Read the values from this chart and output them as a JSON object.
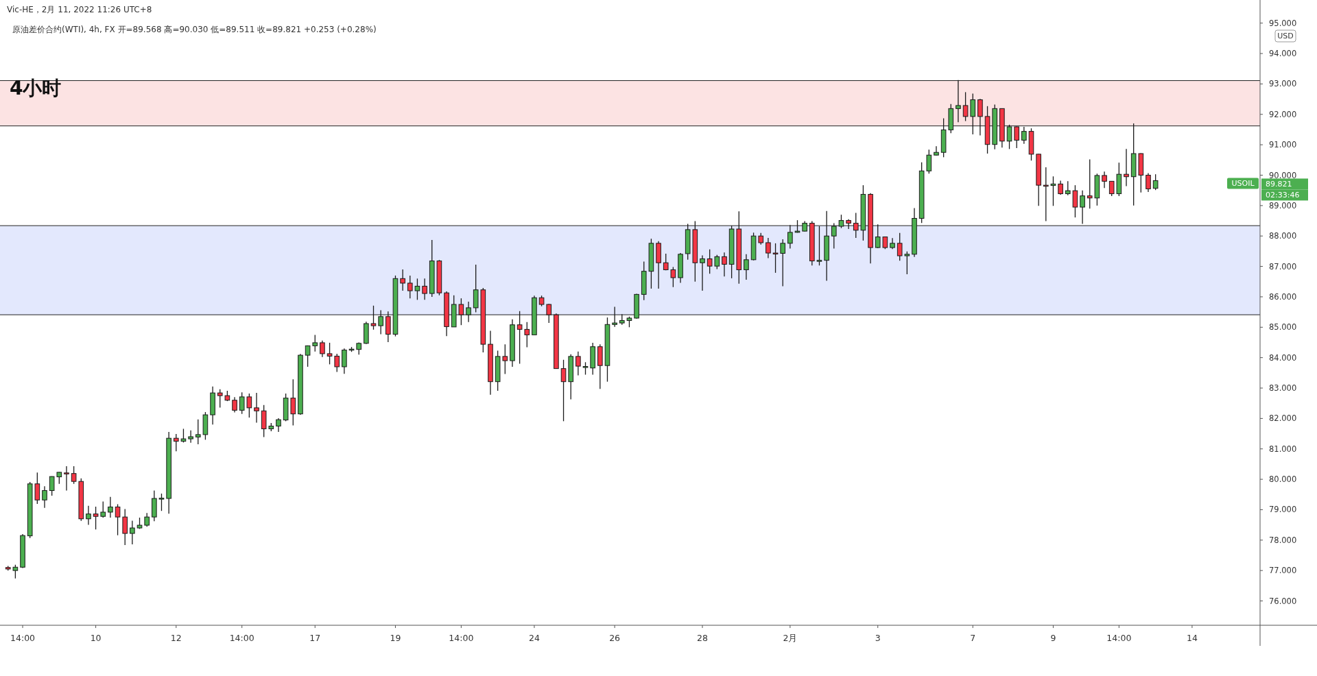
{
  "chart_data": {
    "type": "candlestick",
    "title": "4小时",
    "subtitle": "原油差价合约(WTI), 4h, FX  开=89.568  高=90.030  低=89.511  收=89.821  +0.253 (+0.28%)",
    "annotations": [
      "Vic-HE，2月 11, 2022 11:26 UTC+8",
      "USD",
      "USOIL",
      "89.821",
      "02:33:46"
    ],
    "categories": [
      null,
      null,
      "14:00",
      null,
      null,
      null,
      null,
      null,
      null,
      null,
      null,
      null,
      "10",
      null,
      null,
      null,
      null,
      null,
      null,
      null,
      null,
      null,
      null,
      "12",
      null,
      null,
      null,
      null,
      null,
      null,
      null,
      null,
      "14:00",
      null,
      null,
      null,
      null,
      null,
      null,
      null,
      null,
      null,
      "17",
      null,
      null,
      null,
      null,
      null,
      null,
      null,
      null,
      null,
      null,
      "19",
      null,
      null,
      null,
      null,
      null,
      null,
      null,
      null,
      "14:00",
      null,
      null,
      null,
      null,
      null,
      null,
      null,
      null,
      null,
      "24",
      null,
      null,
      null,
      null,
      null,
      null,
      null,
      null,
      null,
      null,
      "26",
      null,
      null,
      null,
      null,
      null,
      null,
      null,
      null,
      null,
      null,
      null,
      "28",
      null,
      null,
      null,
      null,
      null,
      null,
      null,
      null,
      null,
      null,
      null,
      "2月",
      null,
      null,
      null,
      null,
      null,
      null,
      null,
      null,
      null,
      null,
      null,
      "3",
      null,
      null,
      null,
      null,
      null,
      null,
      null,
      null,
      null,
      null,
      null,
      null,
      "7",
      null,
      null,
      null,
      null,
      null,
      null,
      null,
      null,
      null,
      null,
      "9",
      null,
      null,
      null,
      null,
      null,
      null,
      null,
      null,
      "14:00",
      null,
      null,
      null,
      null,
      null,
      null,
      null,
      null,
      null,
      "14",
      null,
      null,
      null,
      null,
      null,
      null,
      null,
      null,
      null
    ],
    "ohlc": [
      [
        77.1,
        77.15,
        77.0,
        77.05
      ],
      [
        77.0,
        77.19,
        76.74,
        77.11
      ],
      [
        77.11,
        78.2,
        77.08,
        78.15
      ],
      [
        78.14,
        79.91,
        78.07,
        79.85
      ],
      [
        79.85,
        80.22,
        79.19,
        79.32
      ],
      [
        79.32,
        79.77,
        79.06,
        79.63
      ],
      [
        79.63,
        80.1,
        79.46,
        80.09
      ],
      [
        80.08,
        80.24,
        79.85,
        80.23
      ],
      [
        80.21,
        80.43,
        79.63,
        80.2
      ],
      [
        80.19,
        80.43,
        79.85,
        79.93
      ],
      [
        79.93,
        80.03,
        78.63,
        78.7
      ],
      [
        78.7,
        79.13,
        78.5,
        78.86
      ],
      [
        78.86,
        79.1,
        78.35,
        78.78
      ],
      [
        78.78,
        79.27,
        78.74,
        78.92
      ],
      [
        78.92,
        79.42,
        78.74,
        79.09
      ],
      [
        79.09,
        79.18,
        78.16,
        78.76
      ],
      [
        78.76,
        79.02,
        77.84,
        78.22
      ],
      [
        78.22,
        78.64,
        77.86,
        78.4
      ],
      [
        78.4,
        78.74,
        78.37,
        78.49
      ],
      [
        78.49,
        78.89,
        78.44,
        78.76
      ],
      [
        78.76,
        79.63,
        78.62,
        79.37
      ],
      [
        79.37,
        79.53,
        78.96,
        79.38
      ],
      [
        79.37,
        81.56,
        78.87,
        81.35
      ],
      [
        81.35,
        81.49,
        80.92,
        81.25
      ],
      [
        81.25,
        81.66,
        81.21,
        81.33
      ],
      [
        81.33,
        81.61,
        81.2,
        81.4
      ],
      [
        81.39,
        81.97,
        81.15,
        81.47
      ],
      [
        81.47,
        82.21,
        81.3,
        82.12
      ],
      [
        82.12,
        83.05,
        81.8,
        82.84
      ],
      [
        82.84,
        82.96,
        82.36,
        82.75
      ],
      [
        82.75,
        82.91,
        82.57,
        82.6
      ],
      [
        82.6,
        82.7,
        82.2,
        82.27
      ],
      [
        82.27,
        82.86,
        82.15,
        82.71
      ],
      [
        82.71,
        82.82,
        82.03,
        82.35
      ],
      [
        82.35,
        82.84,
        81.86,
        82.25
      ],
      [
        82.25,
        82.44,
        81.39,
        81.66
      ],
      [
        81.66,
        81.85,
        81.58,
        81.75
      ],
      [
        81.75,
        82.01,
        81.56,
        81.96
      ],
      [
        81.95,
        82.82,
        81.91,
        82.67
      ],
      [
        82.67,
        83.29,
        81.77,
        82.15
      ],
      [
        82.15,
        84.12,
        82.12,
        84.08
      ],
      [
        84.08,
        84.4,
        83.7,
        84.39
      ],
      [
        84.39,
        84.75,
        84.2,
        84.49
      ],
      [
        84.49,
        84.56,
        84.02,
        84.13
      ],
      [
        84.13,
        84.49,
        83.78,
        84.05
      ],
      [
        84.05,
        84.13,
        83.53,
        83.7
      ],
      [
        83.7,
        84.3,
        83.47,
        84.25
      ],
      [
        84.25,
        84.35,
        84.19,
        84.28
      ],
      [
        84.27,
        84.5,
        84.1,
        84.47
      ],
      [
        84.47,
        85.18,
        84.45,
        85.12
      ],
      [
        85.12,
        85.71,
        84.92,
        85.05
      ],
      [
        85.05,
        85.56,
        84.77,
        85.35
      ],
      [
        85.35,
        85.52,
        84.51,
        84.77
      ],
      [
        84.77,
        86.7,
        84.7,
        86.6
      ],
      [
        86.6,
        86.9,
        86.2,
        86.45
      ],
      [
        86.45,
        86.7,
        85.95,
        86.2
      ],
      [
        86.2,
        86.6,
        85.9,
        86.35
      ],
      [
        86.35,
        86.6,
        85.9,
        86.11
      ],
      [
        86.11,
        87.87,
        86.0,
        87.18
      ],
      [
        87.18,
        87.21,
        86.05,
        86.13
      ],
      [
        86.13,
        86.18,
        84.71,
        85.02
      ],
      [
        85.01,
        86.05,
        85.01,
        85.75
      ],
      [
        85.75,
        85.95,
        85.07,
        85.41
      ],
      [
        85.41,
        85.84,
        85.17,
        85.64
      ],
      [
        85.64,
        87.06,
        85.49,
        86.23
      ],
      [
        86.23,
        86.29,
        84.17,
        84.44
      ],
      [
        84.44,
        84.88,
        82.78,
        83.21
      ],
      [
        83.21,
        84.23,
        82.91,
        84.04
      ],
      [
        84.04,
        84.44,
        83.46,
        83.9
      ],
      [
        83.9,
        85.26,
        83.7,
        85.08
      ],
      [
        85.08,
        85.53,
        83.8,
        84.93
      ],
      [
        84.93,
        85.17,
        84.34,
        84.75
      ],
      [
        84.75,
        86.04,
        84.75,
        85.97
      ],
      [
        85.97,
        86.04,
        85.69,
        85.75
      ],
      [
        85.75,
        85.77,
        85.14,
        85.41
      ],
      [
        85.41,
        85.45,
        83.63,
        83.64
      ],
      [
        83.64,
        83.93,
        81.91,
        83.21
      ],
      [
        83.21,
        84.11,
        82.63,
        84.04
      ],
      [
        84.04,
        84.2,
        83.42,
        83.72
      ],
      [
        83.69,
        83.85,
        83.44,
        83.71
      ],
      [
        83.66,
        84.49,
        83.44,
        84.36
      ],
      [
        84.36,
        84.44,
        82.97,
        83.74
      ],
      [
        83.74,
        85.32,
        83.21,
        85.09
      ],
      [
        85.09,
        85.67,
        85.01,
        85.14
      ],
      [
        85.14,
        85.43,
        85.08,
        85.22
      ],
      [
        85.22,
        85.35,
        85.0,
        85.3
      ],
      [
        85.3,
        86.1,
        85.28,
        86.08
      ],
      [
        86.08,
        87.16,
        85.89,
        86.84
      ],
      [
        86.84,
        87.91,
        86.27,
        87.76
      ],
      [
        87.76,
        87.83,
        86.27,
        87.12
      ],
      [
        87.12,
        87.42,
        86.87,
        86.89
      ],
      [
        86.89,
        86.98,
        86.32,
        86.63
      ],
      [
        86.63,
        87.44,
        86.46,
        87.4
      ],
      [
        87.42,
        88.4,
        87.22,
        88.21
      ],
      [
        88.21,
        88.49,
        86.5,
        87.12
      ],
      [
        87.12,
        87.36,
        86.2,
        87.25
      ],
      [
        87.25,
        87.56,
        86.76,
        87.01
      ],
      [
        87.01,
        87.38,
        86.91,
        87.32
      ],
      [
        87.32,
        87.46,
        86.67,
        87.07
      ],
      [
        87.07,
        88.34,
        86.61,
        88.23
      ],
      [
        88.23,
        88.81,
        86.43,
        86.89
      ],
      [
        86.89,
        87.4,
        86.56,
        87.22
      ],
      [
        87.22,
        88.11,
        87.2,
        88.0
      ],
      [
        88.0,
        88.1,
        87.72,
        87.78
      ],
      [
        87.78,
        87.94,
        87.27,
        87.44
      ],
      [
        87.44,
        87.76,
        86.79,
        87.43
      ],
      [
        87.43,
        87.89,
        86.35,
        87.76
      ],
      [
        87.76,
        88.36,
        87.59,
        88.12
      ],
      [
        88.12,
        88.52,
        88.11,
        88.16
      ],
      [
        88.16,
        88.49,
        88.15,
        88.42
      ],
      [
        88.42,
        88.49,
        87.03,
        87.18
      ],
      [
        87.18,
        88.32,
        87.03,
        87.2
      ],
      [
        87.2,
        88.82,
        86.53,
        88.0
      ],
      [
        88.0,
        88.42,
        87.59,
        88.32
      ],
      [
        88.32,
        88.7,
        88.26,
        88.51
      ],
      [
        88.51,
        88.55,
        88.23,
        88.42
      ],
      [
        88.42,
        88.76,
        87.94,
        88.19
      ],
      [
        88.19,
        89.67,
        87.85,
        89.37
      ],
      [
        89.37,
        89.41,
        87.1,
        87.62
      ],
      [
        87.62,
        88.38,
        87.6,
        87.97
      ],
      [
        87.97,
        87.98,
        87.57,
        87.62
      ],
      [
        87.62,
        87.93,
        87.57,
        87.76
      ],
      [
        87.76,
        88.1,
        87.19,
        87.35
      ],
      [
        87.35,
        87.49,
        86.74,
        87.4
      ],
      [
        87.4,
        88.92,
        87.31,
        88.58
      ],
      [
        88.58,
        90.42,
        88.43,
        90.14
      ],
      [
        90.14,
        90.84,
        90.05,
        90.66
      ],
      [
        90.66,
        90.95,
        90.65,
        90.75
      ],
      [
        90.75,
        91.87,
        90.59,
        91.49
      ],
      [
        91.49,
        92.34,
        91.38,
        92.19
      ],
      [
        92.19,
        93.13,
        91.74,
        92.29
      ],
      [
        92.29,
        92.73,
        91.78,
        91.93
      ],
      [
        91.93,
        92.68,
        91.34,
        92.48
      ],
      [
        92.48,
        92.51,
        91.31,
        91.93
      ],
      [
        91.93,
        92.27,
        90.71,
        91.01
      ],
      [
        91.01,
        92.32,
        90.85,
        92.19
      ],
      [
        92.19,
        92.2,
        90.91,
        91.12
      ],
      [
        91.12,
        91.66,
        90.86,
        91.59
      ],
      [
        91.59,
        91.6,
        90.89,
        91.15
      ],
      [
        91.15,
        91.59,
        91.03,
        91.44
      ],
      [
        91.44,
        91.54,
        90.48,
        90.69
      ],
      [
        90.69,
        90.7,
        88.99,
        89.67
      ],
      [
        89.67,
        90.26,
        88.49,
        89.66
      ],
      [
        89.66,
        89.96,
        88.99,
        89.71
      ],
      [
        89.71,
        89.82,
        89.36,
        89.39
      ],
      [
        89.39,
        89.8,
        89.34,
        89.49
      ],
      [
        89.49,
        89.67,
        88.61,
        88.95
      ],
      [
        88.95,
        89.5,
        88.4,
        89.32
      ],
      [
        89.32,
        90.52,
        88.9,
        89.25
      ],
      [
        89.25,
        90.05,
        89.0,
        89.99
      ],
      [
        89.99,
        90.12,
        89.58,
        89.8
      ],
      [
        89.8,
        89.8,
        89.31,
        89.39
      ],
      [
        89.39,
        90.41,
        89.31,
        90.03
      ],
      [
        90.03,
        90.86,
        89.64,
        89.95
      ],
      [
        89.95,
        91.7,
        89.0,
        90.71
      ],
      [
        90.71,
        90.72,
        89.43,
        90.0
      ],
      [
        90.0,
        90.07,
        89.45,
        89.55
      ],
      [
        89.568,
        90.03,
        89.511,
        89.821
      ],
      null,
      null,
      null,
      null,
      null,
      null,
      null,
      null,
      null,
      null,
      null,
      null,
      null,
      null
    ],
    "ylim": [
      75.2,
      95.76
    ],
    "yticks": [
      {
        "value": 76,
        "label": "76.000"
      },
      {
        "value": 77,
        "label": "77.000"
      },
      {
        "value": 78,
        "label": "78.000"
      },
      {
        "value": 79,
        "label": "79.000"
      },
      {
        "value": 80,
        "label": "80.000"
      },
      {
        "value": 81,
        "label": "81.000"
      },
      {
        "value": 82,
        "label": "82.000"
      },
      {
        "value": 83,
        "label": "83.000"
      },
      {
        "value": 84,
        "label": "84.000"
      },
      {
        "value": 85,
        "label": "85.000"
      },
      {
        "value": 86,
        "label": "86.000"
      },
      {
        "value": 87,
        "label": "87.000"
      },
      {
        "value": 88,
        "label": "88.000"
      },
      {
        "value": 89,
        "label": "89.000"
      },
      {
        "value": 90,
        "label": "90.000"
      },
      {
        "value": 91,
        "label": "91.000"
      },
      {
        "value": 92,
        "label": "92.000"
      },
      {
        "value": 93,
        "label": "93.000"
      },
      {
        "value": 94,
        "label": "94.000"
      },
      {
        "value": 95,
        "label": "95.000"
      }
    ],
    "bands": [
      {
        "axis": "y",
        "from": 85.41,
        "to": 88.34,
        "color": "#e3e8fd"
      },
      {
        "axis": "y",
        "from": 91.62,
        "to": 93.11,
        "color": "#fce3e3"
      }
    ]
  }
}
